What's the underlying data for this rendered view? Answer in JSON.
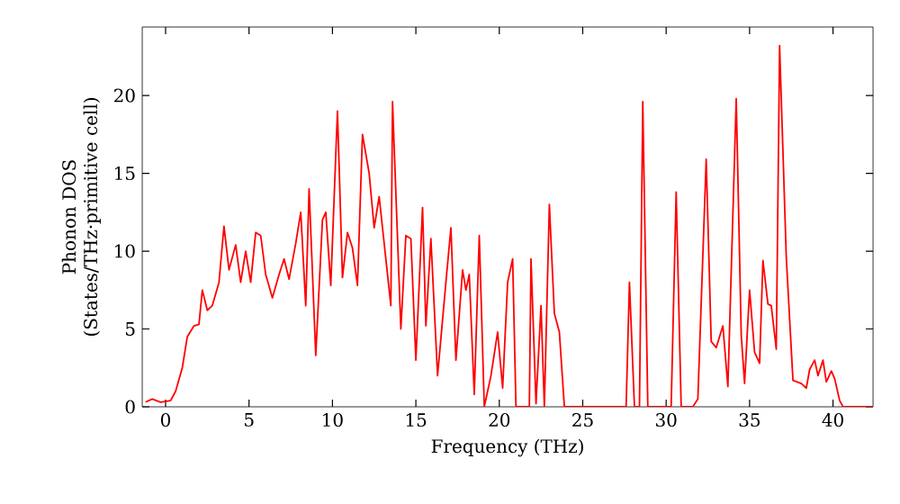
{
  "chart_data": {
    "type": "line",
    "xlabel": "Frequency (THz)",
    "ylabel": "Phonon DOS\n(States/THz·primitive cell)",
    "xlim": [
      -1.4,
      42.4
    ],
    "ylim": [
      0,
      24.4
    ],
    "xticks": [
      0,
      5,
      10,
      15,
      20,
      25,
      30,
      35,
      40
    ],
    "yticks": [
      0,
      5,
      10,
      15,
      20
    ],
    "grid": false,
    "series": [
      {
        "color": "#ff0000",
        "x": [
          -1.2,
          -0.8,
          -0.3,
          0.3,
          0.6,
          1.0,
          1.3,
          1.7,
          2.0,
          2.2,
          2.5,
          2.8,
          3.2,
          3.5,
          3.8,
          4.2,
          4.5,
          4.8,
          5.1,
          5.4,
          5.7,
          6.0,
          6.4,
          6.8,
          7.1,
          7.4,
          7.8,
          8.1,
          8.4,
          8.6,
          9.0,
          9.4,
          9.6,
          9.9,
          10.3,
          10.6,
          10.9,
          11.2,
          11.5,
          11.8,
          12.2,
          12.5,
          12.8,
          13.2,
          13.5,
          13.6,
          14.1,
          14.4,
          14.7,
          15.0,
          15.4,
          15.6,
          15.9,
          16.3,
          16.8,
          17.1,
          17.4,
          17.8,
          18.0,
          18.2,
          18.5,
          18.8,
          19.1,
          19.5,
          19.9,
          20.2,
          20.5,
          20.8,
          21.0,
          21.8,
          21.9,
          22.2,
          22.5,
          22.7,
          23.0,
          23.3,
          23.6,
          23.9,
          27.6,
          27.8,
          28.1,
          28.4,
          28.6,
          28.9,
          30.3,
          30.6,
          30.9,
          31.6,
          31.9,
          32.4,
          32.7,
          33.0,
          33.4,
          33.7,
          34.2,
          34.5,
          34.7,
          35.0,
          35.3,
          35.6,
          35.8,
          36.1,
          36.3,
          36.6,
          36.8,
          37.2,
          37.6,
          38.1,
          38.4,
          38.6,
          38.9,
          39.1,
          39.4,
          39.6,
          39.9,
          40.1,
          40.4,
          40.6,
          42.4
        ],
        "values": [
          0.3,
          0.5,
          0.3,
          0.4,
          1.0,
          2.5,
          4.5,
          5.2,
          5.3,
          7.5,
          6.2,
          6.5,
          8.0,
          11.6,
          8.8,
          10.4,
          8.0,
          10.0,
          8.0,
          11.2,
          11.0,
          8.5,
          7.0,
          8.5,
          9.5,
          8.2,
          10.5,
          12.5,
          6.5,
          14.0,
          3.3,
          12.0,
          12.5,
          7.8,
          19.0,
          8.3,
          11.2,
          10.2,
          7.8,
          17.5,
          15.0,
          11.5,
          13.5,
          9.5,
          6.5,
          19.6,
          5.0,
          11.0,
          10.8,
          3.0,
          12.8,
          5.2,
          10.8,
          2.0,
          8.0,
          11.5,
          3.0,
          8.8,
          7.5,
          8.5,
          0.8,
          11.0,
          0,
          2.0,
          4.8,
          1.2,
          8.0,
          9.5,
          0,
          0,
          9.5,
          0.2,
          6.5,
          0,
          13.0,
          6.0,
          4.8,
          0,
          0,
          8.0,
          0,
          0,
          19.6,
          0,
          0,
          13.8,
          0,
          0,
          0.5,
          15.9,
          4.2,
          3.8,
          5.2,
          1.3,
          19.8,
          4.6,
          1.5,
          7.5,
          3.5,
          2.8,
          9.4,
          6.6,
          6.5,
          3.7,
          23.2,
          9.6,
          1.7,
          1.5,
          1.2,
          2.4,
          3.0,
          2.0,
          3.0,
          1.6,
          2.3,
          1.8,
          0.4,
          0,
          0
        ]
      }
    ]
  }
}
